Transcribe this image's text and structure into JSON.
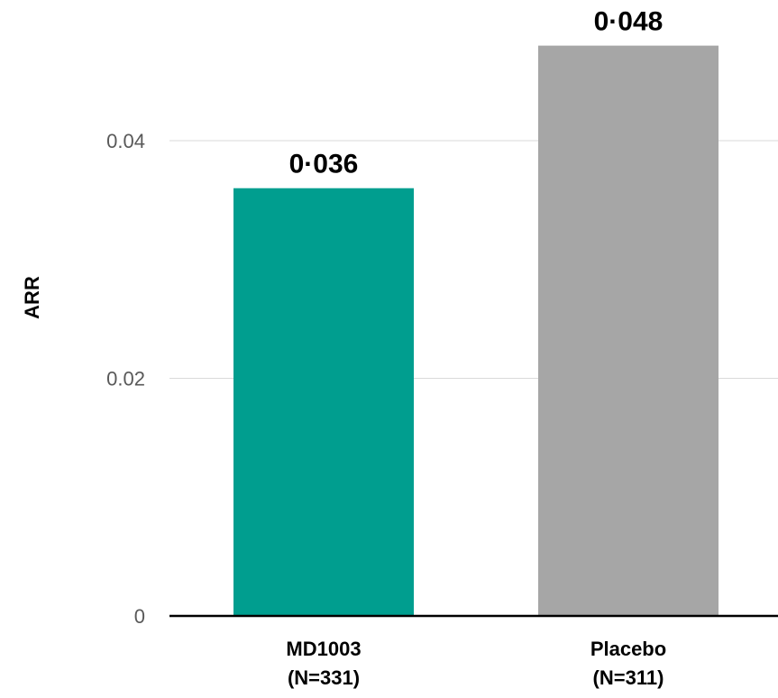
{
  "chart_data": {
    "type": "bar",
    "ylabel": "ARR",
    "xlabel": "",
    "ylim": [
      0,
      0.052
    ],
    "yticks": [
      {
        "value": 0,
        "label": "0"
      },
      {
        "value": 0.02,
        "label": "0.02"
      },
      {
        "value": 0.04,
        "label": "0.04"
      }
    ],
    "grid": true,
    "legend": "none",
    "categories": [
      {
        "line1": "MD1003",
        "line2": "(N=331)"
      },
      {
        "line1": "Placebo",
        "line2": "(N=311)"
      }
    ],
    "values": [
      0.036,
      0.048
    ],
    "value_labels": [
      "0·036",
      "0·048"
    ],
    "colors": [
      "#009e8f",
      "#a6a6a6"
    ]
  }
}
